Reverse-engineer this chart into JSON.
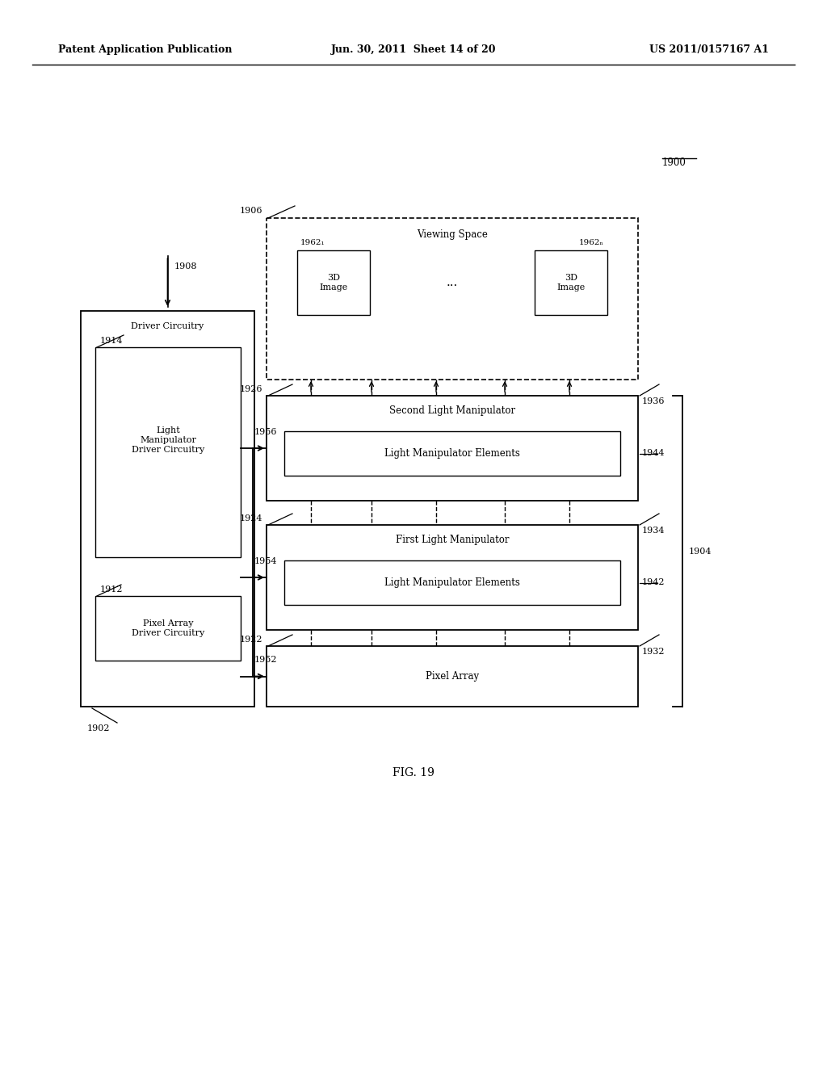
{
  "title_left": "Patent Application Publication",
  "title_center": "Jun. 30, 2011  Sheet 14 of 20",
  "title_right": "US 2011/0157167 A1",
  "fig_label": "FIG. 19",
  "ref_1900": "1900",
  "ref_1902": "1902",
  "ref_1904": "1904",
  "ref_1906": "1906",
  "ref_1908": "1908",
  "ref_1912": "1912",
  "ref_1914": "1914",
  "ref_1922": "1922",
  "ref_1924": "1924",
  "ref_1926": "1926",
  "ref_1932": "1932",
  "ref_1934": "1934",
  "ref_1936": "1936",
  "ref_1942": "1942",
  "ref_1944": "1944",
  "ref_1952": "1952",
  "ref_1954": "1954",
  "ref_1956": "1956",
  "ref_19621": "1962₁",
  "ref_1962n": "1962ₙ",
  "label_driver_circuitry": "Driver Circuitry",
  "label_lm_driver": "Light\nManipulator\nDriver Circuitry",
  "label_pa_driver": "Pixel Array\nDriver Circuitry",
  "label_viewing_space": "Viewing Space",
  "label_3d_image": "3D\nImage",
  "label_3d_image2": "3D\nImage",
  "label_dots": "...",
  "label_second_lm": "Second Light Manipulator",
  "label_lme_second": "Light Manipulator Elements",
  "label_first_lm": "First Light Manipulator",
  "label_lme_first": "Light Manipulator Elements",
  "label_pixel_array": "Pixel Array",
  "bg_color": "#ffffff",
  "line_color": "#000000"
}
